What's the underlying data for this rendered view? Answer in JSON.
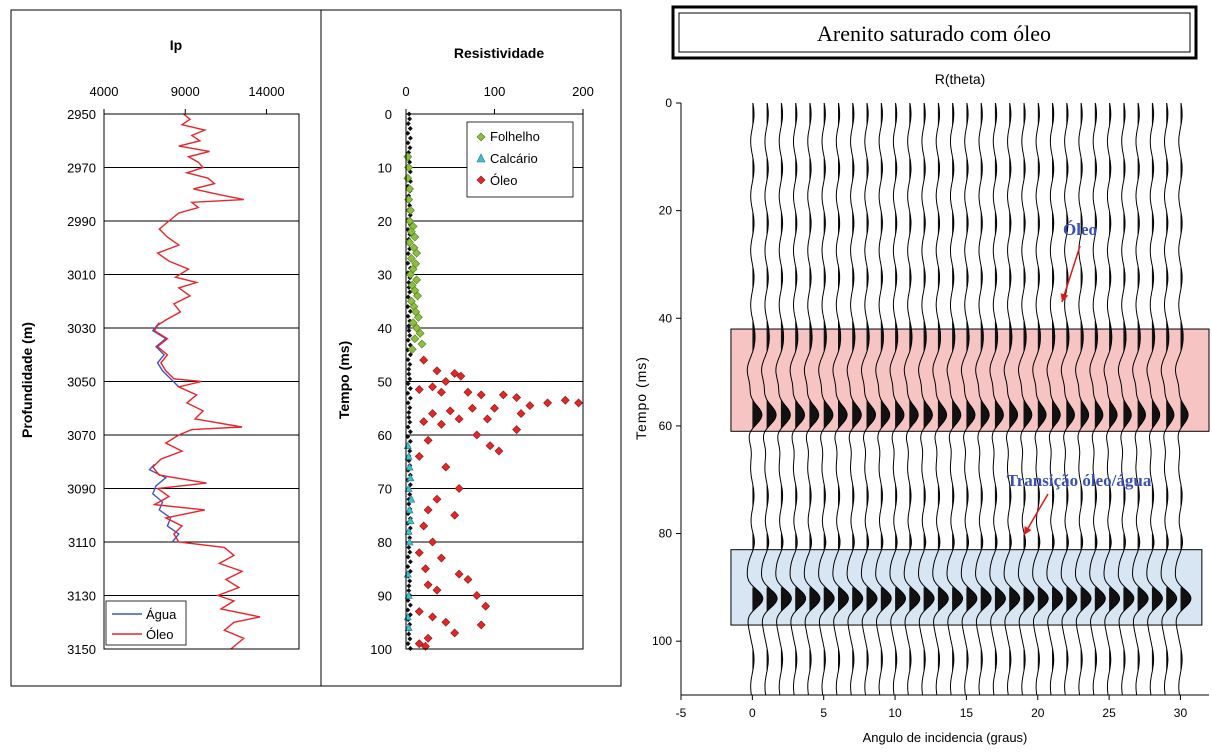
{
  "chart_data": [
    {
      "type": "line",
      "title": "Ip",
      "xlabel": "",
      "ylabel": "Profundidade (m)",
      "xlim": [
        4000,
        16000
      ],
      "ylim": [
        3150,
        2950
      ],
      "xticks": [
        4000,
        9000,
        14000
      ],
      "yticks": [
        2950,
        2970,
        2990,
        3010,
        3030,
        3050,
        3070,
        3090,
        3110,
        3130,
        3150
      ],
      "grid": "horizontal",
      "legend_position": "bottom-left",
      "colors": {
        "agua": "#4055c8",
        "oleo": "#e8252a"
      },
      "series": [
        {
          "name": "Água",
          "y": [
            3028,
            3031,
            3034,
            3037,
            3040,
            3043,
            3046,
            3049,
            3052,
            3081,
            3083,
            3086,
            3089,
            3092,
            3095,
            3098,
            3101,
            3104,
            3107,
            3110
          ],
          "values": [
            7400,
            7000,
            7800,
            7200,
            7700,
            7300,
            7600,
            8100,
            8600,
            7100,
            6800,
            7800,
            7200,
            7000,
            7600,
            7400,
            8100,
            7900,
            8600,
            8200
          ]
        },
        {
          "name": "Óleo",
          "y": [
            2950,
            2952,
            2954,
            2956,
            2958,
            2960,
            2962,
            2964,
            2966,
            2968,
            2970,
            2972,
            2974,
            2976,
            2978,
            2980,
            2982,
            2983,
            2985,
            2987,
            2990,
            2993,
            2996,
            2999,
            3002,
            3005,
            3008,
            3011,
            3013,
            3015,
            3018,
            3021,
            3024,
            3027,
            3029,
            3031,
            3034,
            3037,
            3040,
            3043,
            3046,
            3049,
            3050,
            3052,
            3055,
            3058,
            3061,
            3064,
            3067,
            3068,
            3070,
            3073,
            3076,
            3079,
            3082,
            3085,
            3088,
            3090,
            3093,
            3096,
            3098,
            3101,
            3104,
            3107,
            3110,
            3112,
            3115,
            3118,
            3121,
            3124,
            3127,
            3130,
            3132,
            3135,
            3138,
            3140,
            3143,
            3146,
            3150
          ],
          "values": [
            8900,
            9300,
            8800,
            10200,
            9400,
            9900,
            8600,
            10500,
            9200,
            9800,
            10100,
            9100,
            10400,
            10800,
            9500,
            11000,
            12600,
            9400,
            9800,
            8600,
            8000,
            7400,
            7900,
            8600,
            7300,
            8000,
            9200,
            8400,
            9700,
            8600,
            9300,
            8300,
            8700,
            7800,
            7300,
            7100,
            7900,
            7300,
            7900,
            7500,
            7800,
            8300,
            10000,
            8600,
            9700,
            9100,
            10100,
            9600,
            12500,
            9400,
            8600,
            7800,
            8800,
            7500,
            7000,
            7400,
            10300,
            7300,
            8000,
            7100,
            10200,
            7800,
            8800,
            8300,
            8600,
            11400,
            12000,
            11100,
            12500,
            11500,
            12300,
            11000,
            12000,
            11200,
            13600,
            12000,
            11400,
            12600,
            11800
          ]
        }
      ],
      "legend": [
        "Água",
        "Óleo"
      ]
    },
    {
      "type": "scatter",
      "title": "Resistividade",
      "xlabel": "",
      "ylabel": "Tempo (ms)",
      "xlim": [
        0,
        200
      ],
      "ylim": [
        100,
        0
      ],
      "xticks": [
        0,
        100,
        200
      ],
      "yticks": [
        0,
        10,
        20,
        30,
        40,
        50,
        60,
        70,
        80,
        90,
        100
      ],
      "grid": "horizontal",
      "legend_position": "top-right",
      "colors": {
        "folhelho": "#8cbf3f",
        "calcario": "#3fbfcf",
        "oleo": "#e02828",
        "base": "#111111"
      },
      "series": [
        {
          "name": "Folhelho",
          "points": [
            [
              2,
              8
            ],
            [
              3,
              10
            ],
            [
              2,
              12
            ],
            [
              4,
              14
            ],
            [
              3,
              16
            ],
            [
              5,
              18
            ],
            [
              4,
              20
            ],
            [
              8,
              21
            ],
            [
              6,
              22
            ],
            [
              10,
              23
            ],
            [
              4,
              24
            ],
            [
              9,
              25
            ],
            [
              12,
              26
            ],
            [
              6,
              27
            ],
            [
              11,
              28
            ],
            [
              8,
              29
            ],
            [
              5,
              30
            ],
            [
              12,
              31
            ],
            [
              7,
              32
            ],
            [
              10,
              33
            ],
            [
              13,
              34
            ],
            [
              6,
              35
            ],
            [
              9,
              36
            ],
            [
              11,
              37
            ],
            [
              14,
              38
            ],
            [
              8,
              39
            ],
            [
              12,
              40
            ],
            [
              16,
              41
            ],
            [
              10,
              42
            ],
            [
              18,
              43
            ],
            [
              7,
              44
            ]
          ]
        },
        {
          "name": "Calcário",
          "points": [
            [
              2,
              62
            ],
            [
              3,
              64
            ],
            [
              4,
              66
            ],
            [
              5,
              68
            ],
            [
              3,
              70
            ],
            [
              6,
              72
            ],
            [
              4,
              74
            ],
            [
              5,
              76
            ],
            [
              3,
              78
            ],
            [
              4,
              80
            ],
            [
              2,
              86
            ],
            [
              3,
              90
            ],
            [
              2,
              94
            ],
            [
              3,
              96
            ]
          ]
        },
        {
          "name": "Óleo",
          "points": [
            [
              20,
              46
            ],
            [
              35,
              48
            ],
            [
              55,
              48.5
            ],
            [
              62,
              49
            ],
            [
              45,
              50
            ],
            [
              30,
              51
            ],
            [
              15,
              51.5
            ],
            [
              40,
              52
            ],
            [
              70,
              52
            ],
            [
              85,
              52.5
            ],
            [
              110,
              52.5
            ],
            [
              125,
              53
            ],
            [
              180,
              53.5
            ],
            [
              195,
              54
            ],
            [
              160,
              54
            ],
            [
              140,
              54.5
            ],
            [
              100,
              55
            ],
            [
              75,
              55
            ],
            [
              50,
              55.5
            ],
            [
              30,
              56
            ],
            [
              130,
              56
            ],
            [
              92,
              57
            ],
            [
              60,
              57
            ],
            [
              20,
              57.5
            ],
            [
              40,
              58
            ],
            [
              125,
              59
            ],
            [
              80,
              60
            ],
            [
              25,
              61
            ],
            [
              95,
              62
            ],
            [
              105,
              63
            ],
            [
              15,
              64
            ],
            [
              45,
              66
            ],
            [
              60,
              70
            ],
            [
              35,
              72
            ],
            [
              25,
              74
            ],
            [
              55,
              75
            ],
            [
              20,
              77
            ],
            [
              30,
              80
            ],
            [
              15,
              82
            ],
            [
              40,
              83
            ],
            [
              22,
              85
            ],
            [
              60,
              86
            ],
            [
              70,
              87
            ],
            [
              25,
              88
            ],
            [
              35,
              89
            ],
            [
              80,
              90
            ],
            [
              90,
              92
            ],
            [
              15,
              93
            ],
            [
              30,
              94
            ],
            [
              45,
              95
            ],
            [
              85,
              95.5
            ],
            [
              55,
              97
            ],
            [
              25,
              98
            ],
            [
              15,
              99
            ],
            [
              22,
              99.5
            ]
          ]
        }
      ],
      "legend": [
        "Folhelho",
        "Calcário",
        "Óleo"
      ]
    },
    {
      "type": "line",
      "title": "Arenito saturado com óleo",
      "subtitle": "R(theta)",
      "xlabel": "Angulo de incidencia (graus)",
      "ylabel": "Tempo (ms)",
      "xlim": [
        -5,
        32
      ],
      "ylim": [
        110,
        0
      ],
      "xticks": [
        -5,
        0,
        5,
        10,
        15,
        20,
        25,
        30
      ],
      "yticks": [
        0,
        20,
        40,
        60,
        80,
        100
      ],
      "trace_angles": [
        0,
        1,
        2,
        3,
        4,
        5,
        6,
        7,
        8,
        9,
        10,
        11,
        12,
        13,
        14,
        15,
        16,
        17,
        18,
        19,
        20,
        21,
        22,
        23,
        24,
        25,
        26,
        27,
        28,
        29,
        30
      ],
      "highlight_bands": [
        {
          "name": "Óleo",
          "t_range": [
            42,
            61
          ],
          "color": "#f7c4c4",
          "wavelet_t": 58
        },
        {
          "name": "Transição óleo/água",
          "t_range": [
            83,
            97
          ],
          "color": "#d8e6f3",
          "wavelet_t": 92
        }
      ],
      "annotations": [
        {
          "text": "Óleo",
          "color": "#3a4fb5",
          "at_angle": 22,
          "at_t": 39
        },
        {
          "text": "Transição óleo/água",
          "color": "#3a4fb5",
          "at_angle": 19,
          "at_t": 81
        }
      ]
    }
  ]
}
